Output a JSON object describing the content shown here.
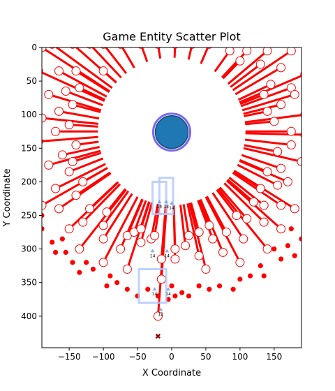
{
  "chart_data": {
    "type": "scatter",
    "title": "Game Entity Scatter Plot",
    "xlabel": "X Coordinate",
    "ylabel": "Y Coordinate",
    "xlim": [
      -190,
      190
    ],
    "ylim": [
      447,
      0
    ],
    "y_inverted": true,
    "xticks": [
      -150,
      -100,
      -50,
      0,
      50,
      100,
      150
    ],
    "yticks": [
      0,
      50,
      100,
      150,
      200,
      250,
      300,
      350,
      400
    ],
    "grid": false,
    "legend": "none",
    "colors": {
      "ray": "#ff0000",
      "red_dot": "#ff0000",
      "player": "#1f77b4",
      "player_ring": "#7b68ee",
      "ghost_box": "#aec7ff",
      "ghost_marker": "#5b8fd6",
      "x_marker": "#8b0000",
      "disk": "#ffffff"
    },
    "center": [
      0,
      125
    ],
    "disk_radius": 108,
    "player": {
      "x": 0,
      "y": 126,
      "radius": 24
    },
    "hollow_circles": [
      [
        -190,
        0
      ],
      [
        -175,
        -5
      ],
      [
        -145,
        -5
      ],
      [
        -120,
        -5
      ],
      [
        -100,
        -5
      ],
      [
        -75,
        -5
      ],
      [
        -45,
        -5
      ],
      [
        -20,
        -5
      ],
      [
        5,
        -5
      ],
      [
        30,
        -5
      ],
      [
        55,
        -5
      ],
      [
        85,
        5
      ],
      [
        110,
        5
      ],
      [
        140,
        5
      ],
      [
        175,
        5
      ],
      [
        -195,
        35
      ],
      [
        -165,
        35
      ],
      [
        -140,
        35
      ],
      [
        -100,
        35
      ],
      [
        100,
        20
      ],
      [
        130,
        25
      ],
      [
        160,
        30
      ],
      [
        -180,
        70
      ],
      [
        -155,
        65
      ],
      [
        -135,
        60
      ],
      [
        135,
        70
      ],
      [
        145,
        55
      ],
      [
        175,
        60
      ],
      [
        195,
        40
      ],
      [
        -190,
        105
      ],
      [
        -165,
        95
      ],
      [
        -145,
        85
      ],
      [
        140,
        95
      ],
      [
        160,
        85
      ],
      [
        180,
        70
      ],
      [
        195,
        100
      ],
      [
        -195,
        140
      ],
      [
        -170,
        125
      ],
      [
        -150,
        115
      ],
      [
        150,
        110
      ],
      [
        175,
        125
      ],
      [
        195,
        130
      ],
      [
        -180,
        175
      ],
      [
        -160,
        160
      ],
      [
        -140,
        145
      ],
      [
        155,
        155
      ],
      [
        175,
        145
      ],
      [
        190,
        170
      ],
      [
        -170,
        210
      ],
      [
        -150,
        185
      ],
      [
        -145,
        170
      ],
      [
        140,
        185
      ],
      [
        160,
        180
      ],
      [
        -190,
        235
      ],
      [
        -165,
        240
      ],
      [
        -140,
        220
      ],
      [
        -130,
        200
      ],
      [
        130,
        210
      ],
      [
        155,
        205
      ],
      [
        170,
        200
      ],
      [
        -150,
        270
      ],
      [
        -130,
        260
      ],
      [
        -120,
        240
      ],
      [
        120,
        230
      ],
      [
        135,
        235
      ],
      [
        160,
        235
      ],
      [
        180,
        240
      ],
      [
        -135,
        300
      ],
      [
        -100,
        285
      ],
      [
        -100,
        265
      ],
      [
        -95,
        245
      ],
      [
        95,
        250
      ],
      [
        110,
        255
      ],
      [
        135,
        260
      ],
      [
        160,
        270
      ],
      [
        -100,
        320
      ],
      [
        -75,
        300
      ],
      [
        -65,
        280
      ],
      [
        -55,
        275
      ],
      [
        -45,
        270
      ],
      [
        55,
        265
      ],
      [
        80,
        275
      ],
      [
        105,
        285
      ],
      [
        140,
        300
      ],
      [
        -65,
        330
      ],
      [
        -45,
        290
      ],
      [
        -30,
        285
      ],
      [
        -25,
        280
      ],
      [
        25,
        280
      ],
      [
        40,
        275
      ],
      [
        60,
        285
      ],
      [
        75,
        305
      ],
      [
        100,
        320
      ],
      [
        -15,
        345
      ],
      [
        -15,
        315
      ],
      [
        5,
        300
      ],
      [
        5,
        315
      ],
      [
        20,
        295
      ],
      [
        40,
        310
      ],
      [
        50,
        330
      ],
      [
        -20,
        400
      ]
    ],
    "red_dots": [
      [
        -190,
        0
      ],
      [
        -190,
        250
      ],
      [
        -190,
        270
      ],
      [
        -175,
        290
      ],
      [
        -170,
        305
      ],
      [
        -160,
        285
      ],
      [
        -155,
        305
      ],
      [
        -145,
        320
      ],
      [
        -135,
        335
      ],
      [
        -125,
        320
      ],
      [
        -115,
        330
      ],
      [
        -95,
        355
      ],
      [
        -90,
        340
      ],
      [
        -80,
        350
      ],
      [
        -65,
        360
      ],
      [
        -50,
        370
      ],
      [
        -35,
        360
      ],
      [
        -20,
        370
      ],
      [
        -5,
        375
      ],
      [
        0,
        355
      ],
      [
        5,
        370
      ],
      [
        15,
        365
      ],
      [
        25,
        370
      ],
      [
        40,
        355
      ],
      [
        55,
        360
      ],
      [
        70,
        355
      ],
      [
        90,
        360
      ],
      [
        100,
        345
      ],
      [
        115,
        340
      ],
      [
        130,
        325
      ],
      [
        135,
        340
      ],
      [
        150,
        300
      ],
      [
        160,
        315
      ],
      [
        170,
        295
      ],
      [
        175,
        270
      ],
      [
        180,
        310
      ],
      [
        190,
        285
      ]
    ],
    "ghost_labels": [
      {
        "x": -18,
        "y": 232,
        "label": "14"
      },
      {
        "x": -8,
        "y": 232,
        "label": "13"
      },
      {
        "x": 0,
        "y": 234,
        "label": "14"
      },
      {
        "x": -25,
        "y": 362,
        "label": "14"
      },
      {
        "x": -5,
        "y": 362,
        "label": "14"
      },
      {
        "x": -28,
        "y": 305,
        "label": "14"
      },
      {
        "x": -7,
        "y": 305,
        "label": "14"
      },
      {
        "x": -16,
        "y": 392,
        "label": "12"
      }
    ],
    "x_marker": {
      "x": -20,
      "y": 430
    }
  }
}
